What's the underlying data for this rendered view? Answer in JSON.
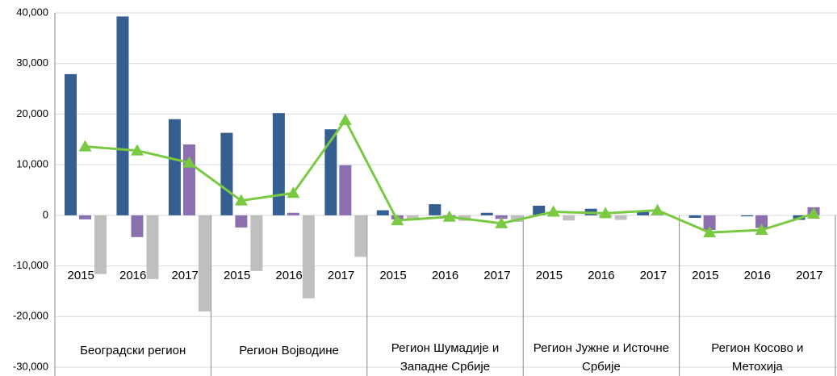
{
  "chart_data": {
    "type": "bar",
    "categories": [
      "2015",
      "2016",
      "2017",
      "2015",
      "2016",
      "2017",
      "2015",
      "2016",
      "2017",
      "2015",
      "2016",
      "2017",
      "2015",
      "2016",
      "2017"
    ],
    "groups": [
      [
        "Београдски регион"
      ],
      [
        "Регион Војводине"
      ],
      [
        "Регион Шумадије и",
        "Западне Србије"
      ],
      [
        "Регион Јужне и Источне",
        "Србије"
      ],
      [
        "Регион Косово и",
        "Метохија"
      ]
    ],
    "series": [
      {
        "color": "#355f91",
        "values": [
          27900,
          39300,
          19000,
          16300,
          20200,
          17000,
          1000,
          2200,
          500,
          1900,
          1300,
          800,
          -500,
          -200,
          -900
        ]
      },
      {
        "color": "#8c6fae",
        "values": [
          -800,
          -4300,
          14000,
          -2400,
          500,
          9900,
          -800,
          -500,
          -700,
          -100,
          -200,
          300,
          -2900,
          -2500,
          1600
        ]
      },
      {
        "color": "#bfbfbf",
        "values": [
          -11600,
          -12600,
          -19000,
          -11000,
          -16400,
          -8200,
          -1000,
          -1100,
          -1300,
          -1000,
          -900,
          0,
          0,
          0,
          0
        ]
      },
      {
        "type": "line",
        "color": "#7ac943",
        "values": [
          13600,
          12800,
          10400,
          2900,
          4400,
          18800,
          -1000,
          -300,
          -1600,
          700,
          400,
          1000,
          -3400,
          -2900,
          300
        ]
      }
    ],
    "ylim": [
      -30000,
      40000
    ],
    "yticks": [
      {
        "value": -30000,
        "label": "-30,000"
      },
      {
        "value": -20000,
        "label": "-20,000"
      },
      {
        "value": -10000,
        "label": "-10,000"
      },
      0,
      {
        "value": 10000,
        "label": "10,000"
      },
      {
        "value": 20000,
        "label": "20,000"
      },
      {
        "value": 30000,
        "label": "30,000"
      },
      {
        "value": 40000,
        "label": "40,000"
      }
    ],
    "grid": true
  }
}
